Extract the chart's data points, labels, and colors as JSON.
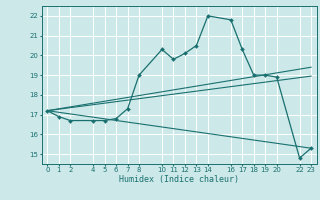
{
  "xlabel": "Humidex (Indice chaleur)",
  "bg_color": "#cce8e8",
  "grid_color": "#ffffff",
  "line_color": "#1a7070",
  "xlim": [
    -0.5,
    23.5
  ],
  "ylim": [
    14.5,
    22.5
  ],
  "xticks": [
    0,
    1,
    2,
    4,
    5,
    6,
    7,
    8,
    10,
    11,
    12,
    13,
    14,
    16,
    17,
    18,
    19,
    20,
    22,
    23
  ],
  "yticks": [
    15,
    16,
    17,
    18,
    19,
    20,
    21,
    22
  ],
  "curve1_x": [
    0,
    1,
    2,
    4,
    5,
    6,
    7,
    8,
    10,
    11,
    12,
    13,
    14,
    16,
    17,
    18,
    19,
    20,
    22,
    23
  ],
  "curve1_y": [
    17.2,
    16.9,
    16.7,
    16.7,
    16.7,
    16.8,
    17.3,
    19.0,
    20.3,
    19.8,
    20.1,
    20.5,
    22.0,
    21.8,
    20.3,
    19.0,
    19.0,
    18.9,
    14.8,
    15.3
  ],
  "curve2_x": [
    0,
    23
  ],
  "curve2_y": [
    17.2,
    19.4
  ],
  "curve3_x": [
    0,
    23
  ],
  "curve3_y": [
    17.2,
    18.95
  ],
  "curve4_x": [
    0,
    23
  ],
  "curve4_y": [
    17.2,
    15.3
  ]
}
